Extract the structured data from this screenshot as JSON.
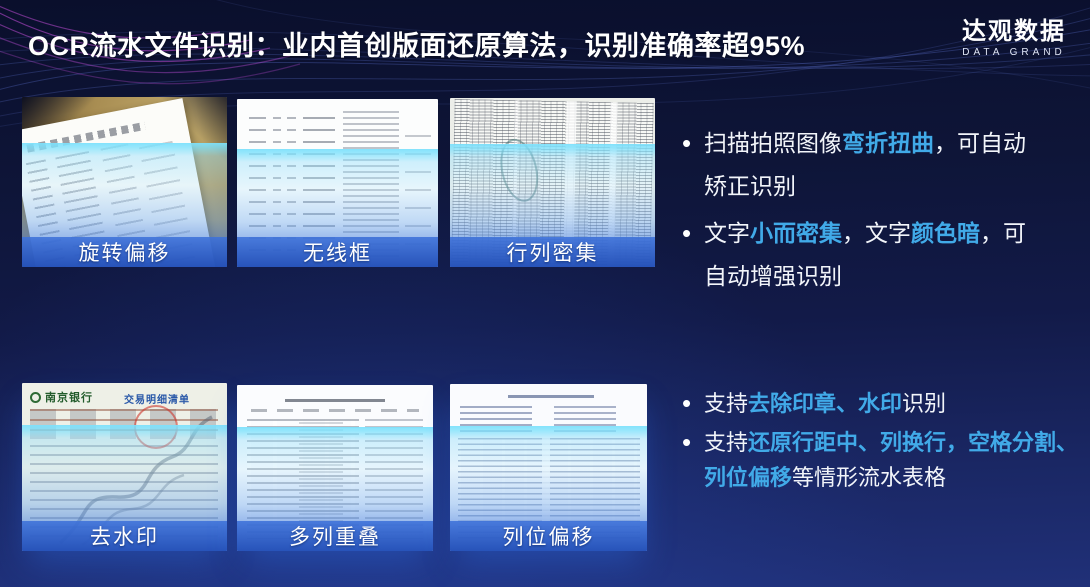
{
  "slide": {
    "title": "OCR流水文件识别：业内首创版面还原算法，识别准确率超95%",
    "logo": {
      "name": "达观数据",
      "subtitle": "DATA GRAND"
    }
  },
  "colors": {
    "background_top": "#0a0f2c",
    "background_bottom": "#203078",
    "highlight_text": "#41aae8",
    "label_bar_blue": "#2d5cbe",
    "scan_band_cyan": "#7de1fc",
    "wave_blue": "#5a6ec8",
    "wave_purple": "#c94fe0"
  },
  "cards": [
    {
      "label": "旋转偏移"
    },
    {
      "label": "无线框"
    },
    {
      "label": "行列密集"
    },
    {
      "label": "去水印",
      "bank_name": "南京银行",
      "doc_title": "交易明细清单"
    },
    {
      "label": "多列重叠"
    },
    {
      "label": "列位偏移"
    }
  ],
  "bullets_top": [
    {
      "lines": [
        [
          {
            "t": "扫描拍照图像"
          },
          {
            "t": "弯折扭曲",
            "h": true
          },
          {
            "t": "，可自动"
          }
        ],
        [
          {
            "t": "矫正识别"
          }
        ]
      ]
    },
    {
      "lines": [
        [
          {
            "t": "文字"
          },
          {
            "t": "小而密集",
            "h": true
          },
          {
            "t": "，文字"
          },
          {
            "t": "颜色暗",
            "h": true
          },
          {
            "t": "，可"
          }
        ],
        [
          {
            "t": "自动增强识别"
          }
        ]
      ]
    }
  ],
  "bullets_bottom": [
    {
      "lines": [
        [
          {
            "t": "支持"
          },
          {
            "t": "去除印章、水印",
            "h": true
          },
          {
            "t": "识别"
          }
        ]
      ]
    },
    {
      "lines": [
        [
          {
            "t": "支持"
          },
          {
            "t": "还原行距中、列换行，空格分割、",
            "h": true
          }
        ],
        [
          {
            "t": "列位偏移",
            "h": true
          },
          {
            "t": "等情形流水表格"
          }
        ]
      ]
    }
  ]
}
